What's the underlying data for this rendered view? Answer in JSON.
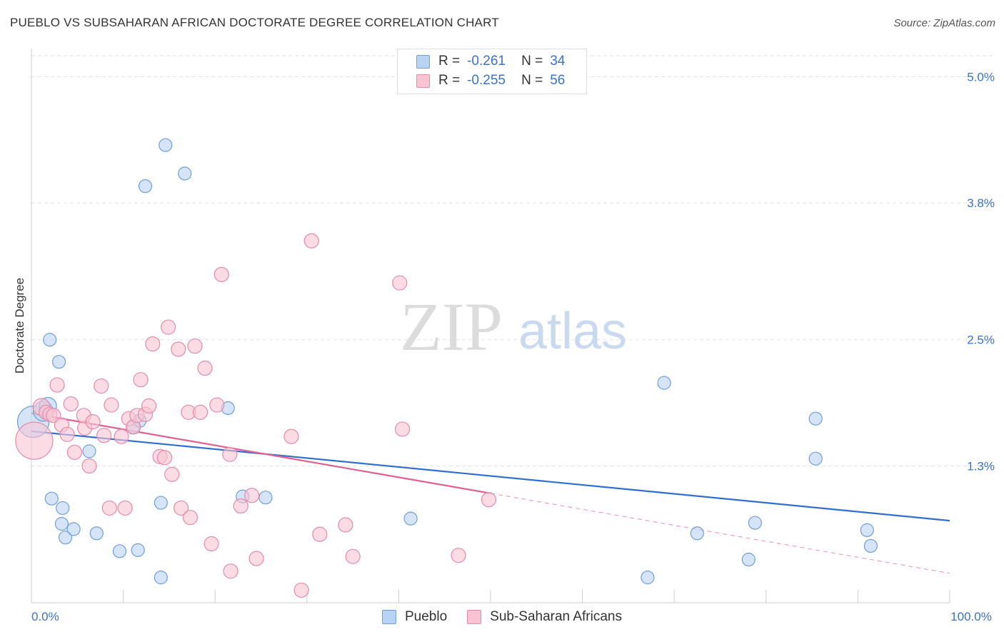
{
  "header": {
    "title": "PUEBLO VS SUBSAHARAN AFRICAN DOCTORATE DEGREE CORRELATION CHART",
    "source": "Source: ZipAtlas.com"
  },
  "watermark": {
    "zip": "ZIP",
    "atlas": "atlas"
  },
  "legend": {
    "r_label": "R =",
    "n_label": "N =",
    "rows": [
      {
        "series": "Pueblo",
        "r": "-0.261",
        "n": "34"
      },
      {
        "series": "Sub-Saharan Africans",
        "r": "-0.255",
        "n": "56"
      }
    ]
  },
  "colors": {
    "pueblo_fill": "#b9d3f2",
    "pueblo_stroke": "#6f9fd8",
    "pueblo_line": "#2f6fd1",
    "ssa_fill": "#f8c4d4",
    "ssa_stroke": "#e58aa8",
    "ssa_line": "#e0608f",
    "axis_text": "#3a73c8",
    "grid": "#e2e2e2"
  },
  "chart_data": {
    "type": "scatter",
    "title": "PUEBLO VS SUBSAHARAN AFRICAN DOCTORATE DEGREE CORRELATION CHART",
    "xlabel": "",
    "ylabel": "Doctorate Degree",
    "xlim": [
      0,
      100
    ],
    "ylim": [
      0,
      5.2
    ],
    "x_tick_labels": [
      {
        "value": 0,
        "label": "0.0%"
      },
      {
        "value": 100,
        "label": "100.0%"
      }
    ],
    "y_ticks": [
      {
        "value": 1.3,
        "label": "1.3%"
      },
      {
        "value": 2.5,
        "label": "2.5%"
      },
      {
        "value": 3.8,
        "label": "3.8%"
      },
      {
        "value": 5.0,
        "label": "5.0%"
      }
    ],
    "grid": true,
    "legend_position": "top-center",
    "series": [
      {
        "name": "Pueblo",
        "points": [
          [
            0.2,
            1.72,
            22
          ],
          [
            1.3,
            1.82,
            14
          ],
          [
            1.8,
            1.87,
            12
          ],
          [
            2.0,
            2.5,
            9
          ],
          [
            3.0,
            2.29,
            9
          ],
          [
            2.2,
            0.99,
            9
          ],
          [
            3.4,
            0.9,
            9
          ],
          [
            3.3,
            0.75,
            9
          ],
          [
            3.7,
            0.62,
            9
          ],
          [
            4.6,
            0.7,
            9
          ],
          [
            7.1,
            0.66,
            9
          ],
          [
            6.3,
            1.44,
            9
          ],
          [
            9.6,
            0.49,
            9
          ],
          [
            11.1,
            1.67,
            9
          ],
          [
            11.8,
            1.73,
            9
          ],
          [
            11.6,
            0.5,
            9
          ],
          [
            12.4,
            3.96,
            9
          ],
          [
            14.1,
            0.95,
            9
          ],
          [
            14.1,
            0.24,
            9
          ],
          [
            14.6,
            4.35,
            9
          ],
          [
            16.7,
            4.08,
            9
          ],
          [
            21.4,
            1.85,
            9
          ],
          [
            23.0,
            1.01,
            9
          ],
          [
            25.5,
            1.0,
            9
          ],
          [
            41.3,
            0.8,
            9
          ],
          [
            67.1,
            0.24,
            9
          ],
          [
            68.9,
            2.09,
            9
          ],
          [
            72.5,
            0.66,
            9
          ],
          [
            78.1,
            0.41,
            9
          ],
          [
            78.8,
            0.76,
            9
          ],
          [
            85.4,
            1.37,
            9
          ],
          [
            85.4,
            1.75,
            9
          ],
          [
            91.0,
            0.69,
            9
          ],
          [
            91.4,
            0.54,
            9
          ]
        ]
      },
      {
        "name": "Sub-Saharan Africans",
        "points": [
          [
            0.3,
            1.54,
            26
          ],
          [
            1.1,
            1.86,
            12
          ],
          [
            1.6,
            1.81,
            10
          ],
          [
            2.0,
            1.79,
            10
          ],
          [
            2.4,
            1.78,
            10
          ],
          [
            2.8,
            2.07,
            10
          ],
          [
            3.3,
            1.69,
            10
          ],
          [
            3.9,
            1.6,
            10
          ],
          [
            4.3,
            1.89,
            10
          ],
          [
            4.7,
            1.43,
            10
          ],
          [
            5.8,
            1.66,
            10
          ],
          [
            5.7,
            1.78,
            10
          ],
          [
            6.3,
            1.3,
            10
          ],
          [
            6.7,
            1.72,
            10
          ],
          [
            7.6,
            2.06,
            10
          ],
          [
            7.9,
            1.59,
            10
          ],
          [
            8.5,
            0.9,
            10
          ],
          [
            8.7,
            1.88,
            10
          ],
          [
            9.8,
            1.58,
            10
          ],
          [
            10.2,
            0.9,
            10
          ],
          [
            10.6,
            1.75,
            10
          ],
          [
            11.1,
            1.67,
            10
          ],
          [
            11.5,
            1.78,
            10
          ],
          [
            11.9,
            2.12,
            10
          ],
          [
            12.4,
            1.79,
            10
          ],
          [
            12.8,
            1.87,
            10
          ],
          [
            13.2,
            2.46,
            10
          ],
          [
            14.0,
            1.39,
            10
          ],
          [
            14.5,
            1.38,
            10
          ],
          [
            14.9,
            2.62,
            10
          ],
          [
            15.3,
            1.22,
            10
          ],
          [
            16.0,
            2.41,
            10
          ],
          [
            16.3,
            0.9,
            10
          ],
          [
            17.1,
            1.81,
            10
          ],
          [
            17.3,
            0.81,
            10
          ],
          [
            17.8,
            2.44,
            10
          ],
          [
            18.4,
            1.81,
            10
          ],
          [
            18.9,
            2.23,
            10
          ],
          [
            19.6,
            0.56,
            10
          ],
          [
            20.2,
            1.88,
            10
          ],
          [
            20.7,
            3.12,
            10
          ],
          [
            21.6,
            1.41,
            10
          ],
          [
            21.7,
            0.3,
            10
          ],
          [
            22.8,
            0.92,
            10
          ],
          [
            24.0,
            1.02,
            10
          ],
          [
            24.5,
            0.42,
            10
          ],
          [
            28.3,
            1.58,
            10
          ],
          [
            29.4,
            0.12,
            10
          ],
          [
            30.5,
            3.44,
            10
          ],
          [
            31.4,
            0.65,
            10
          ],
          [
            34.2,
            0.74,
            10
          ],
          [
            35.0,
            0.44,
            10
          ],
          [
            40.1,
            3.04,
            10
          ],
          [
            40.4,
            1.65,
            10
          ],
          [
            46.5,
            0.45,
            10
          ],
          [
            49.8,
            0.98,
            10
          ]
        ]
      }
    ],
    "trendlines": [
      {
        "series": "Pueblo",
        "x": [
          0,
          100
        ],
        "y": [
          1.63,
          0.78
        ],
        "style": "solid"
      },
      {
        "series": "Sub-Saharan Africans",
        "x": [
          0,
          50
        ],
        "y": [
          1.8,
          1.04
        ],
        "style": "solid"
      },
      {
        "series": "Sub-Saharan Africans",
        "x": [
          50,
          100
        ],
        "y": [
          1.04,
          0.28
        ],
        "style": "dashed"
      }
    ]
  }
}
